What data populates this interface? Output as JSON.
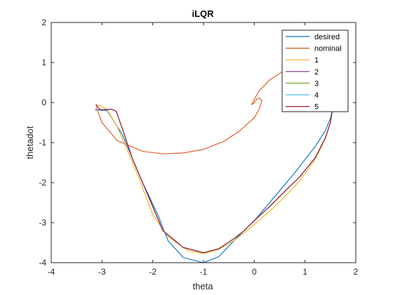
{
  "chart_data": {
    "type": "line",
    "title": "iLQR",
    "xlabel": "theta",
    "ylabel": "thetadot",
    "xlim": [
      -4,
      2
    ],
    "ylim": [
      -4,
      2
    ],
    "xticks": [
      -4,
      -3,
      -2,
      -1,
      0,
      1,
      2
    ],
    "yticks": [
      -4,
      -3,
      -2,
      -1,
      0,
      1,
      2
    ],
    "xtick_labels": [
      "-4",
      "-3",
      "-2",
      "-1",
      "0",
      "1",
      "2"
    ],
    "ytick_labels": [
      "-4",
      "-3",
      "-2",
      "-1",
      "0",
      "1",
      "2"
    ],
    "grid": false,
    "legend_position": "top-right",
    "series": [
      {
        "name": "desired",
        "color": "#0072BD",
        "x": [
          -3.14,
          -2.9,
          -2.6,
          -2.2,
          -1.9,
          -1.7,
          -1.4,
          -1.0,
          -0.7,
          -0.4,
          -0.2,
          0.0,
          0.2,
          0.4,
          0.6,
          0.8,
          1.0,
          1.2,
          1.4,
          1.5,
          1.57
        ],
        "y": [
          -0.18,
          -0.2,
          -0.8,
          -2.0,
          -2.8,
          -3.45,
          -3.87,
          -4.0,
          -3.85,
          -3.45,
          -3.2,
          -2.95,
          -2.65,
          -2.35,
          -2.05,
          -1.75,
          -1.42,
          -1.1,
          -0.7,
          -0.4,
          0.0
        ]
      },
      {
        "name": "nominal",
        "color": "#D95319",
        "x": [
          -3.12,
          -3.0,
          -2.7,
          -2.2,
          -1.8,
          -1.4,
          -1.0,
          -0.6,
          -0.3,
          0.0,
          0.1,
          0.15,
          0.1,
          0.05,
          -0.02,
          -0.05,
          0.0,
          0.1,
          0.3,
          0.6,
          0.9,
          1.1,
          1.2,
          1.22
        ],
        "y": [
          -0.1,
          -0.5,
          -0.95,
          -1.22,
          -1.28,
          -1.26,
          -1.17,
          -0.97,
          -0.72,
          -0.38,
          -0.15,
          0.05,
          0.12,
          0.08,
          -0.03,
          -0.05,
          0.08,
          0.3,
          0.56,
          0.81,
          0.98,
          1.12,
          1.18,
          1.2
        ]
      },
      {
        "name": "1",
        "color": "#EDB120",
        "x": [
          -3.12,
          -3.0,
          -2.9,
          -2.7,
          -2.3,
          -2.0,
          -1.7,
          -1.3,
          -1.0,
          -0.7,
          -0.4,
          -0.2,
          0.0,
          0.3,
          0.6,
          0.9,
          1.2,
          1.4,
          1.5,
          1.55
        ],
        "y": [
          -0.05,
          -0.1,
          -0.18,
          -0.6,
          -1.8,
          -2.8,
          -3.35,
          -3.7,
          -3.77,
          -3.67,
          -3.45,
          -3.25,
          -3.05,
          -2.72,
          -2.35,
          -1.95,
          -1.42,
          -0.9,
          -0.5,
          -0.1
        ]
      },
      {
        "name": "2",
        "color": "#7E2F8E",
        "x": [
          -3.12,
          -3.05,
          -3.0,
          -2.9,
          -2.8,
          -2.72,
          -2.6,
          -2.4,
          -2.1,
          -1.8,
          -1.4,
          -1.0,
          -0.7,
          -0.4,
          -0.2,
          0.0,
          0.3,
          0.6,
          0.9,
          1.2,
          1.4,
          1.5,
          1.55
        ],
        "y": [
          -0.05,
          -0.17,
          -0.18,
          -0.17,
          -0.17,
          -0.22,
          -0.65,
          -1.4,
          -2.3,
          -3.2,
          -3.62,
          -3.75,
          -3.65,
          -3.4,
          -3.2,
          -2.95,
          -2.6,
          -2.22,
          -1.85,
          -1.38,
          -0.88,
          -0.5,
          -0.1
        ]
      },
      {
        "name": "3",
        "color": "#77AC30",
        "x": [
          -3.12,
          -3.05,
          -3.0,
          -2.9,
          -2.8,
          -2.72,
          -2.6,
          -2.4,
          -2.1,
          -1.8,
          -1.4,
          -1.0,
          -0.7,
          -0.4,
          -0.2,
          0.0,
          0.3,
          0.6,
          0.9,
          1.2,
          1.4,
          1.5,
          1.55
        ],
        "y": [
          -0.05,
          -0.17,
          -0.18,
          -0.17,
          -0.17,
          -0.22,
          -0.65,
          -1.4,
          -2.3,
          -3.2,
          -3.62,
          -3.75,
          -3.65,
          -3.4,
          -3.2,
          -2.95,
          -2.6,
          -2.22,
          -1.85,
          -1.38,
          -0.88,
          -0.5,
          -0.1
        ]
      },
      {
        "name": "4",
        "color": "#4DBEEE",
        "x": [
          -3.12,
          -3.05,
          -3.0,
          -2.9,
          -2.8,
          -2.72,
          -2.6,
          -2.4,
          -2.1,
          -1.8,
          -1.4,
          -1.0,
          -0.7,
          -0.4,
          -0.2,
          0.0,
          0.3,
          0.6,
          0.9,
          1.2,
          1.4,
          1.5,
          1.55
        ],
        "y": [
          -0.05,
          -0.17,
          -0.18,
          -0.17,
          -0.17,
          -0.22,
          -0.65,
          -1.4,
          -2.3,
          -3.2,
          -3.62,
          -3.75,
          -3.65,
          -3.4,
          -3.2,
          -2.95,
          -2.6,
          -2.22,
          -1.85,
          -1.38,
          -0.88,
          -0.5,
          -0.1
        ]
      },
      {
        "name": "5",
        "color": "#A2142F",
        "x": [
          -3.12,
          -3.05,
          -3.0,
          -2.9,
          -2.8,
          -2.72,
          -2.6,
          -2.4,
          -2.1,
          -1.8,
          -1.4,
          -1.0,
          -0.7,
          -0.4,
          -0.2,
          0.0,
          0.3,
          0.6,
          0.9,
          1.2,
          1.4,
          1.5,
          1.55
        ],
        "y": [
          -0.05,
          -0.17,
          -0.18,
          -0.17,
          -0.17,
          -0.22,
          -0.65,
          -1.4,
          -2.3,
          -3.2,
          -3.62,
          -3.75,
          -3.65,
          -3.4,
          -3.2,
          -2.95,
          -2.6,
          -2.22,
          -1.85,
          -1.38,
          -0.88,
          -0.5,
          -0.1
        ]
      }
    ]
  }
}
